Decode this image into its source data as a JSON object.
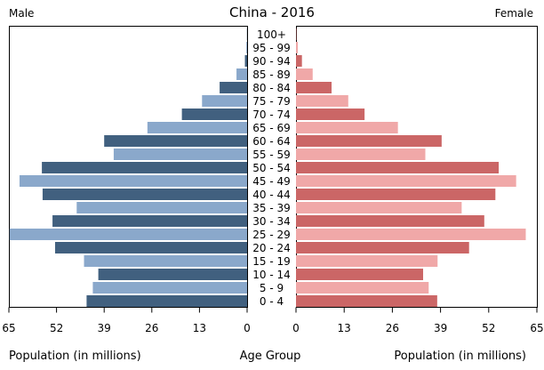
{
  "chart_data": {
    "type": "bar",
    "title": "China - 2016",
    "left_label": "Male",
    "right_label": "Female",
    "categories": [
      "100+",
      "95 - 99",
      "90 - 94",
      "85 - 89",
      "80 - 84",
      "75 - 79",
      "70 - 74",
      "65 - 69",
      "60 - 64",
      "55 - 59",
      "50 - 54",
      "45 - 49",
      "40 - 44",
      "35 - 39",
      "30 - 34",
      "25 - 29",
      "20 - 24",
      "15 - 19",
      "10 - 14",
      "5 - 9",
      "0 - 4"
    ],
    "series": [
      {
        "name": "Male",
        "values": [
          0.05,
          0.2,
          0.6,
          2.9,
          7.5,
          12.3,
          17.8,
          27.2,
          39.0,
          36.4,
          56.0,
          62.1,
          55.8,
          46.5,
          53.1,
          64.8,
          52.4,
          44.5,
          40.6,
          42.1,
          43.8
        ]
      },
      {
        "name": "Female",
        "values": [
          0.1,
          0.5,
          1.6,
          4.5,
          9.6,
          14.1,
          18.5,
          27.5,
          39.3,
          34.9,
          54.7,
          59.4,
          53.8,
          44.7,
          50.8,
          62.0,
          46.7,
          38.2,
          34.3,
          35.8,
          38.1
        ]
      }
    ],
    "colors": {
      "Male": [
        "#41607f",
        "#8aa8cb"
      ],
      "Female": [
        "#cb6666",
        "#f0a8a8"
      ]
    },
    "x_ticks_left": [
      "65",
      "52",
      "39",
      "26",
      "13",
      "0"
    ],
    "x_ticks_right": [
      "0",
      "13",
      "26",
      "39",
      "52",
      "65"
    ],
    "xlim": [
      0,
      65
    ],
    "xlabel_left": "Population (in millions)",
    "xlabel_center": "Age Group",
    "xlabel_right": "Population (in millions)"
  }
}
